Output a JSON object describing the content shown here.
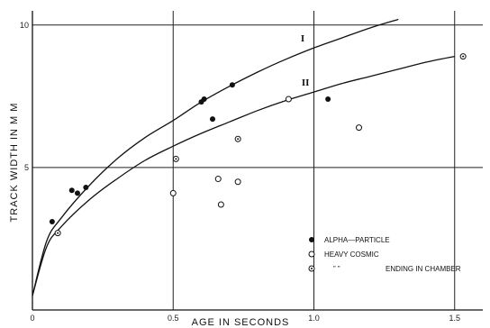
{
  "chart_data": {
    "type": "scatter",
    "xlabel": "AGE IN SECONDS",
    "ylabel": "TRACK WIDTH IN M M",
    "xlim": [
      0,
      1.6
    ],
    "ylim": [
      0,
      10.5
    ],
    "x_ticks": [
      {
        "value": 0,
        "label": "0"
      },
      {
        "value": 0.5,
        "label": "0.5"
      },
      {
        "value": 1.0,
        "label": "1.0"
      },
      {
        "value": 1.5,
        "label": "1.5"
      }
    ],
    "y_ticks": [
      {
        "value": 5,
        "label": "5"
      },
      {
        "value": 10,
        "label": "10"
      }
    ],
    "grid": true,
    "legend_position": "bottom-right",
    "series": [
      {
        "name": "ALPHA—PARTICLE",
        "marker": "filled-circle",
        "points": [
          {
            "x": 0.07,
            "y": 3.1
          },
          {
            "x": 0.14,
            "y": 4.2
          },
          {
            "x": 0.16,
            "y": 4.1
          },
          {
            "x": 0.19,
            "y": 4.3
          },
          {
            "x": 0.6,
            "y": 7.3
          },
          {
            "x": 0.61,
            "y": 7.4
          },
          {
            "x": 0.64,
            "y": 6.7
          },
          {
            "x": 0.71,
            "y": 7.9
          },
          {
            "x": 1.05,
            "y": 7.4
          }
        ]
      },
      {
        "name": "HEAVY COSMIC",
        "marker": "open-circle",
        "points": [
          {
            "x": 0.5,
            "y": 4.1
          },
          {
            "x": 0.66,
            "y": 4.6
          },
          {
            "x": 0.67,
            "y": 3.7
          },
          {
            "x": 0.73,
            "y": 4.5
          },
          {
            "x": 0.91,
            "y": 7.4
          },
          {
            "x": 1.16,
            "y": 6.4
          }
        ]
      },
      {
        "name": "ENDING IN CHAMBER",
        "legend_prefix": "”          ”",
        "marker": "dotted-circle",
        "points": [
          {
            "x": 0.09,
            "y": 2.7
          },
          {
            "x": 0.51,
            "y": 5.3
          },
          {
            "x": 0.73,
            "y": 6.0
          },
          {
            "x": 1.53,
            "y": 8.9
          }
        ]
      }
    ],
    "curves": [
      {
        "label": "I",
        "points": [
          {
            "x": 0,
            "y": 0.5
          },
          {
            "x": 0.05,
            "y": 2.4
          },
          {
            "x": 0.1,
            "y": 3.2
          },
          {
            "x": 0.2,
            "y": 4.35
          },
          {
            "x": 0.3,
            "y": 5.3
          },
          {
            "x": 0.4,
            "y": 6.05
          },
          {
            "x": 0.5,
            "y": 6.65
          },
          {
            "x": 0.6,
            "y": 7.3
          },
          {
            "x": 0.7,
            "y": 7.85
          },
          {
            "x": 0.8,
            "y": 8.35
          },
          {
            "x": 0.9,
            "y": 8.8
          },
          {
            "x": 1.0,
            "y": 9.2
          },
          {
            "x": 1.1,
            "y": 9.55
          },
          {
            "x": 1.2,
            "y": 9.9
          },
          {
            "x": 1.3,
            "y": 10.2
          }
        ]
      },
      {
        "label": "II",
        "points": [
          {
            "x": 0,
            "y": 0.5
          },
          {
            "x": 0.05,
            "y": 2.2
          },
          {
            "x": 0.1,
            "y": 2.9
          },
          {
            "x": 0.2,
            "y": 3.85
          },
          {
            "x": 0.3,
            "y": 4.6
          },
          {
            "x": 0.4,
            "y": 5.25
          },
          {
            "x": 0.5,
            "y": 5.75
          },
          {
            "x": 0.6,
            "y": 6.2
          },
          {
            "x": 0.7,
            "y": 6.6
          },
          {
            "x": 0.8,
            "y": 7.0
          },
          {
            "x": 0.9,
            "y": 7.35
          },
          {
            "x": 1.0,
            "y": 7.65
          },
          {
            "x": 1.1,
            "y": 7.95
          },
          {
            "x": 1.2,
            "y": 8.2
          },
          {
            "x": 1.3,
            "y": 8.45
          },
          {
            "x": 1.4,
            "y": 8.7
          },
          {
            "x": 1.5,
            "y": 8.9
          }
        ]
      }
    ]
  }
}
